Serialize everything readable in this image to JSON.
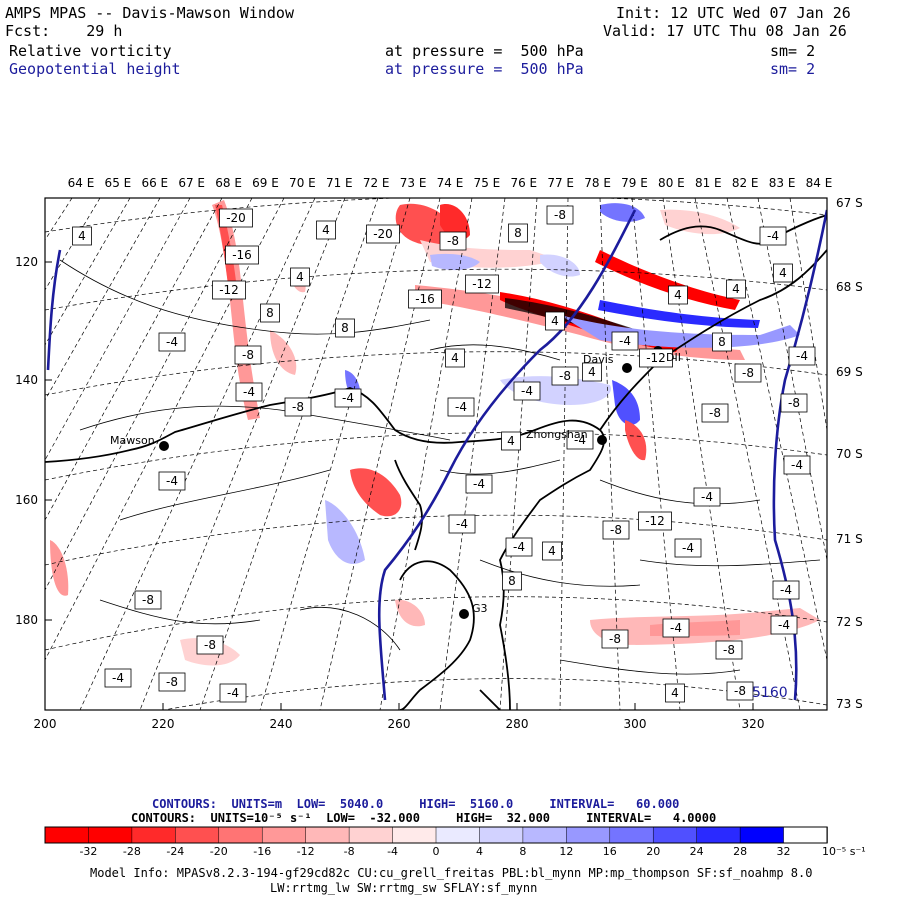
{
  "header": {
    "title": "AMPS MPAS -- Davis-Mawson Window",
    "init": "Init: 12 UTC Wed 07 Jan 26",
    "fcst": "Fcst:    29 h",
    "valid": "Valid: 17 UTC Thu 08 Jan 26",
    "field1_name": "Relative vorticity",
    "field1_level": "at pressure =  500 hPa",
    "field1_sm": "sm= 2",
    "field2_name": "Geopotential height",
    "field2_level": "at pressure =  500 hPa",
    "field2_sm": "sm= 2"
  },
  "map": {
    "lon_labels": [
      "64 E",
      "65 E",
      "66 E",
      "67 E",
      "68 E",
      "69 E",
      "70 E",
      "71 E",
      "72 E",
      "73 E",
      "74 E",
      "75 E",
      "76 E",
      "77 E",
      "78 E",
      "79 E",
      "80 E",
      "81 E",
      "82 E",
      "83 E",
      "84 E"
    ],
    "lat_labels": [
      "67 S",
      "68 S",
      "69 S",
      "70 S",
      "71 S",
      "72 S",
      "73 S"
    ],
    "y_ticks": [
      "120",
      "140",
      "160",
      "180"
    ],
    "x_ticks": [
      "200",
      "220",
      "240",
      "260",
      "280",
      "300",
      "320"
    ],
    "stations": [
      {
        "name": "Mawson"
      },
      {
        "name": "Davis"
      },
      {
        "name": "Zhongshan"
      },
      {
        "name": "G3"
      },
      {
        "name": "DII"
      }
    ],
    "height_label": "5160",
    "contour_labels": [
      "-20",
      "-16",
      "-12",
      "-8",
      "-4",
      "4",
      "8",
      "-4",
      "-8",
      "-8",
      "-4",
      "-8",
      "-4",
      "4",
      "8",
      "4",
      "-4",
      "-4",
      "-8",
      "-20",
      "-8",
      "-16",
      "-12",
      "-8",
      "8",
      "4",
      "4",
      "-4",
      "-4",
      "4",
      "-4",
      "-8",
      "4",
      "-4",
      "4",
      "4",
      "-4",
      "4",
      "-4",
      "-8",
      "-8",
      "8",
      "-8",
      "-12",
      "-4",
      "-8",
      "-8",
      "-4",
      "-4",
      "-8",
      "4",
      "-4",
      "-4",
      "-12",
      "-8",
      "-4",
      "4",
      "-4",
      "-4",
      "8",
      "-4"
    ]
  },
  "contours_text": {
    "line1_label": "CONTOURS:  UNITS=m  LOW=  5040.0     HIGH=  5160.0     INTERVAL=   60.000",
    "line2_label": "CONTOURS:  UNITS=10⁻⁵ s⁻¹  LOW=  -32.000     HIGH=  32.000     INTERVAL=   4.0000"
  },
  "colorbar": {
    "tick_labels": [
      "-32",
      "-28",
      "-24",
      "-20",
      "-16",
      "-12",
      "-8",
      "-4",
      "0",
      "4",
      "8",
      "12",
      "16",
      "20",
      "24",
      "28",
      "32"
    ],
    "units": "10⁻⁵ s⁻¹",
    "colors": [
      "#ff0000",
      "#ff2a2a",
      "#ff5050",
      "#ff7474",
      "#ff9898",
      "#ffb8b8",
      "#ffd2d2",
      "#ffeaea",
      "#ffffff",
      "#eaeaff",
      "#d2d2ff",
      "#b8b8ff",
      "#9898ff",
      "#7474ff",
      "#5050ff",
      "#2a2aff",
      "#0000ff"
    ]
  },
  "footer": {
    "line1": "Model Info: MPASv8.2.3-194-gf29cd82c CU:cu_grell_freitas PBL:bl_mynn MP:mp_thompson SF:sf_noahmp 8.0",
    "line2": "LW:rrtmg_lw SW:rrtmg_sw SFLAY:sf_mynn"
  }
}
